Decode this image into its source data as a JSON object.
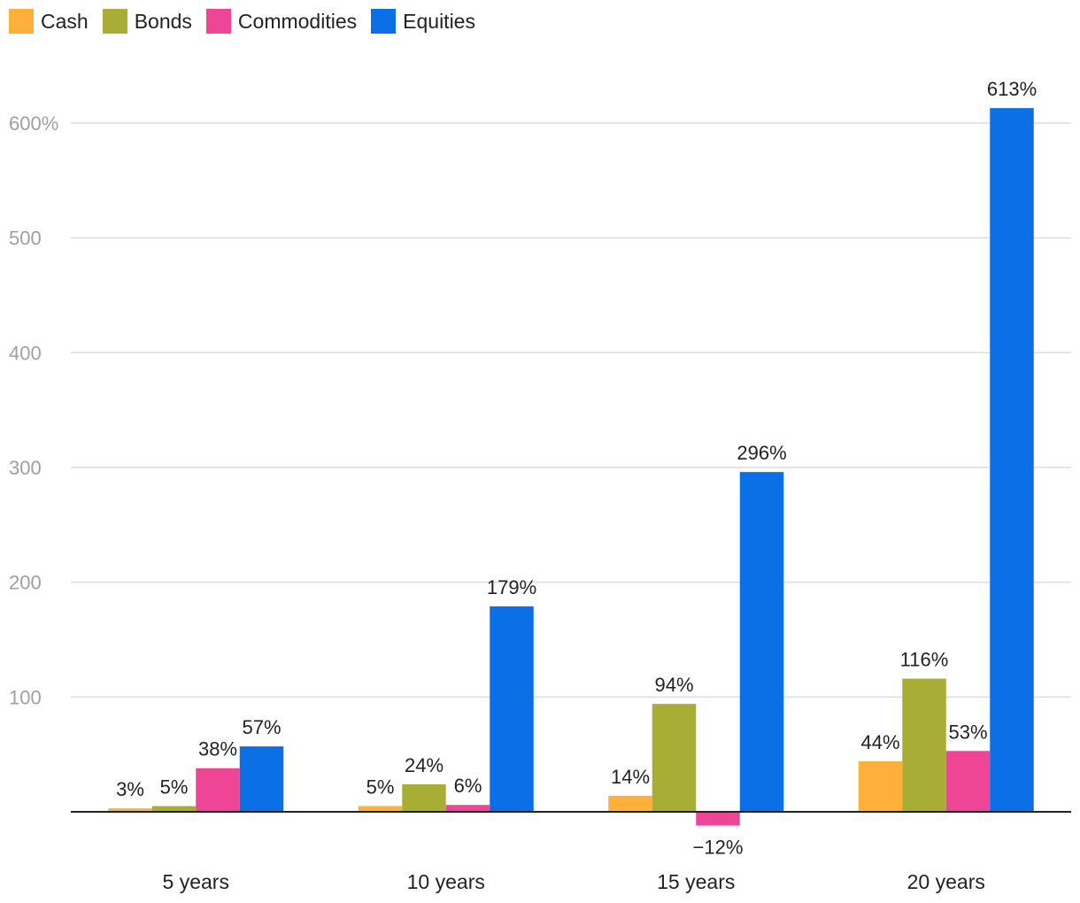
{
  "chart_data": {
    "type": "bar",
    "categories": [
      "5 years",
      "10 years",
      "15 years",
      "20 years"
    ],
    "series": [
      {
        "name": "Cash",
        "color": "#FFB03B",
        "values": [
          3,
          5,
          14,
          44
        ],
        "labels": [
          "3%",
          "5%",
          "14%",
          "44%"
        ]
      },
      {
        "name": "Bonds",
        "color": "#A8AD36",
        "values": [
          5,
          24,
          94,
          116
        ],
        "labels": [
          "5%",
          "24%",
          "94%",
          "116%"
        ]
      },
      {
        "name": "Commodities",
        "color": "#EE4596",
        "values": [
          38,
          6,
          -12,
          53
        ],
        "labels": [
          "38%",
          "6%",
          "−12%",
          "53%"
        ]
      },
      {
        "name": "Equities",
        "color": "#0B6FE6",
        "values": [
          57,
          179,
          296,
          613
        ],
        "labels": [
          "57%",
          "179%",
          "296%",
          "613%"
        ]
      }
    ],
    "yticks": [
      100,
      200,
      300,
      400,
      500,
      600
    ],
    "ytick_labels": [
      "100",
      "200",
      "300",
      "400",
      "500",
      "600%"
    ],
    "ylim": [
      -15,
      640
    ],
    "grid": true,
    "legend_position": "top-left"
  }
}
